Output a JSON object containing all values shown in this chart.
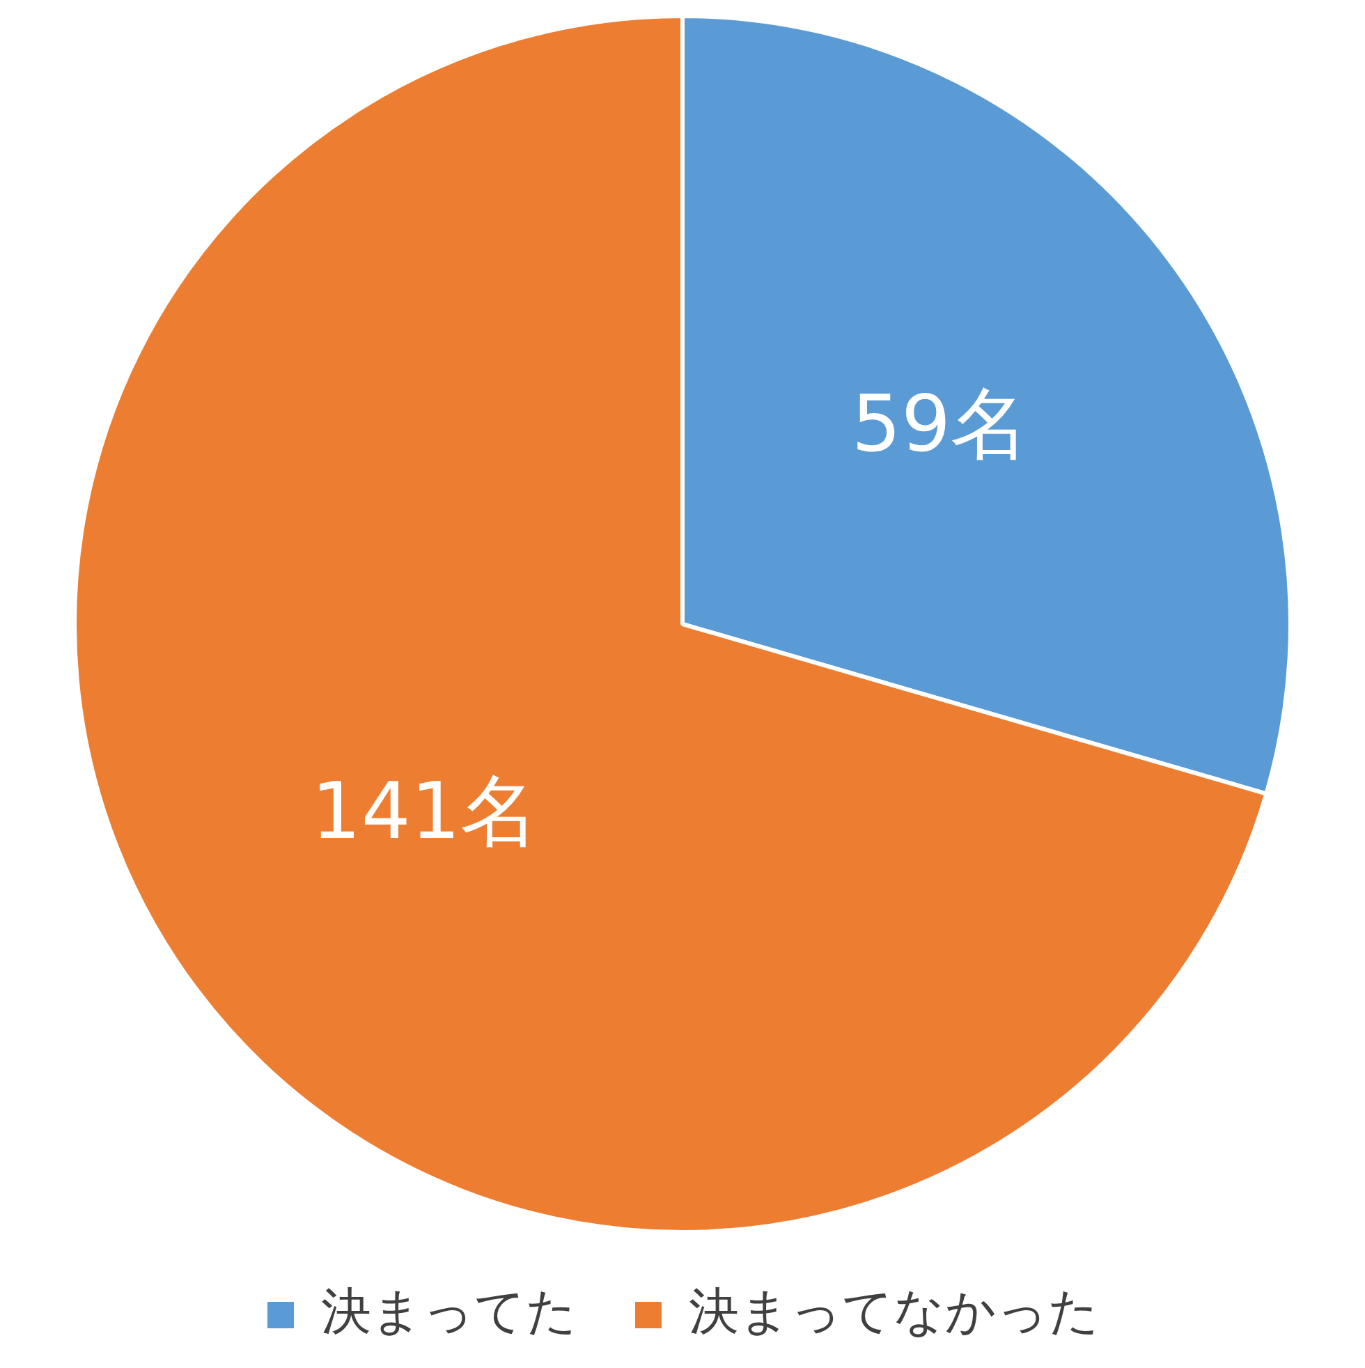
{
  "chart_data": {
    "type": "pie",
    "categories": [
      "決まってた",
      "決まってなかった"
    ],
    "values": [
      59,
      141
    ],
    "colors": [
      "#5b9bd5",
      "#ed7d31"
    ],
    "value_labels": [
      "59名",
      "141名"
    ],
    "legend": "bottom"
  }
}
